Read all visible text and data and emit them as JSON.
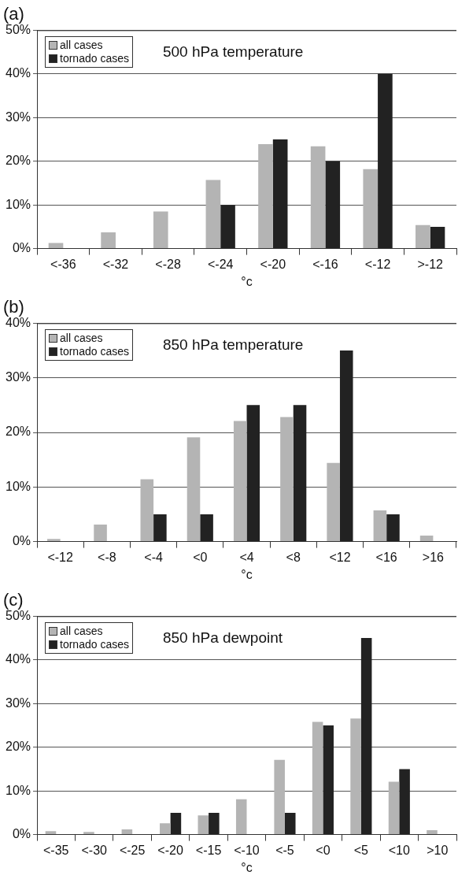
{
  "chart_data": [
    {
      "type": "bar",
      "title": "(a)",
      "subtitle": "500 hPa temperature",
      "xlabel": "°c",
      "categories": [
        "<-36",
        "<-32",
        "<-28",
        "<-24",
        "<-20",
        "<-16",
        "<-12",
        ">-12"
      ],
      "series": [
        {
          "name": "all cases",
          "color": "#b4b4b4",
          "values": [
            1.3,
            3.7,
            8.5,
            15.7,
            23.9,
            23.4,
            18.2,
            5.4
          ]
        },
        {
          "name": "tornado cases",
          "color": "#222222",
          "values": [
            0,
            0,
            0,
            10,
            25,
            20,
            40,
            5
          ]
        }
      ],
      "ylim": [
        0,
        50
      ],
      "yticks": [
        {
          "value": 0,
          "label": "0%"
        },
        {
          "value": 10,
          "label": "10%"
        },
        {
          "value": 20,
          "label": "20%"
        },
        {
          "value": 30,
          "label": "30%"
        },
        {
          "value": 40,
          "label": "40%"
        },
        {
          "value": 50,
          "label": "50%"
        }
      ],
      "grid": "y",
      "legend": "top left"
    },
    {
      "type": "bar",
      "title": "(b)",
      "subtitle": "850 hPa temperature",
      "xlabel": "°c",
      "categories": [
        "<-12",
        "<-8",
        "<-4",
        "<0",
        "<4",
        "<8",
        "<12",
        "<16",
        ">16"
      ],
      "series": [
        {
          "name": "all cases",
          "color": "#b4b4b4",
          "values": [
            0.5,
            3.1,
            11.4,
            19.1,
            22.1,
            22.8,
            14.4,
            5.7,
            1.1
          ]
        },
        {
          "name": "tornado cases",
          "color": "#222222",
          "values": [
            0,
            0,
            5,
            5,
            25,
            25,
            35,
            5,
            0
          ]
        }
      ],
      "ylim": [
        0,
        40
      ],
      "yticks": [
        {
          "value": 0,
          "label": "0%"
        },
        {
          "value": 10,
          "label": "10%"
        },
        {
          "value": 20,
          "label": "20%"
        },
        {
          "value": 30,
          "label": "30%"
        },
        {
          "value": 40,
          "label": "40%"
        }
      ],
      "grid": "y",
      "legend": "top left"
    },
    {
      "type": "bar",
      "title": "(c)",
      "subtitle": "850 hPa dewpoint",
      "xlabel": "°c",
      "categories": [
        "<-35",
        "<-30",
        "<-25",
        "<-20",
        "<-15",
        "<-10",
        "<-5",
        "<0",
        "<5",
        "<10",
        ">10"
      ],
      "series": [
        {
          "name": "all cases",
          "color": "#b4b4b4",
          "values": [
            0.8,
            0.6,
            1.2,
            2.6,
            4.4,
            8.1,
            17.1,
            25.8,
            26.6,
            12.1,
            1.0
          ]
        },
        {
          "name": "tornado cases",
          "color": "#222222",
          "values": [
            0,
            0,
            0,
            5,
            5,
            0,
            5,
            25,
            45,
            15,
            0
          ]
        }
      ],
      "ylim": [
        0,
        50
      ],
      "yticks": [
        {
          "value": 0,
          "label": "0%"
        },
        {
          "value": 10,
          "label": "10%"
        },
        {
          "value": 20,
          "label": "20%"
        },
        {
          "value": 30,
          "label": "30%"
        },
        {
          "value": 40,
          "label": "40%"
        },
        {
          "value": 50,
          "label": "50%"
        }
      ],
      "grid": "y",
      "legend": "top left"
    }
  ]
}
